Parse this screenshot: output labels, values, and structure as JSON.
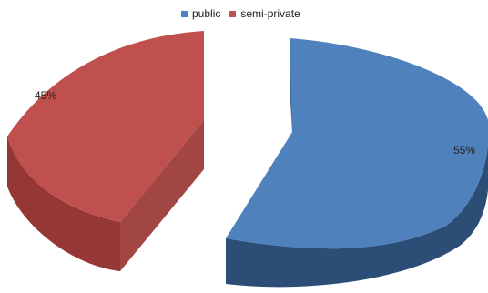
{
  "chart_data": {
    "type": "pie",
    "style": "3d-exploded",
    "categories": [
      "public",
      "semi-private"
    ],
    "values": [
      55,
      45
    ],
    "data_labels": [
      "55%",
      "45%"
    ],
    "colors": [
      "#4F81BD",
      "#C0504D"
    ],
    "legend_position": "top",
    "title": ""
  }
}
